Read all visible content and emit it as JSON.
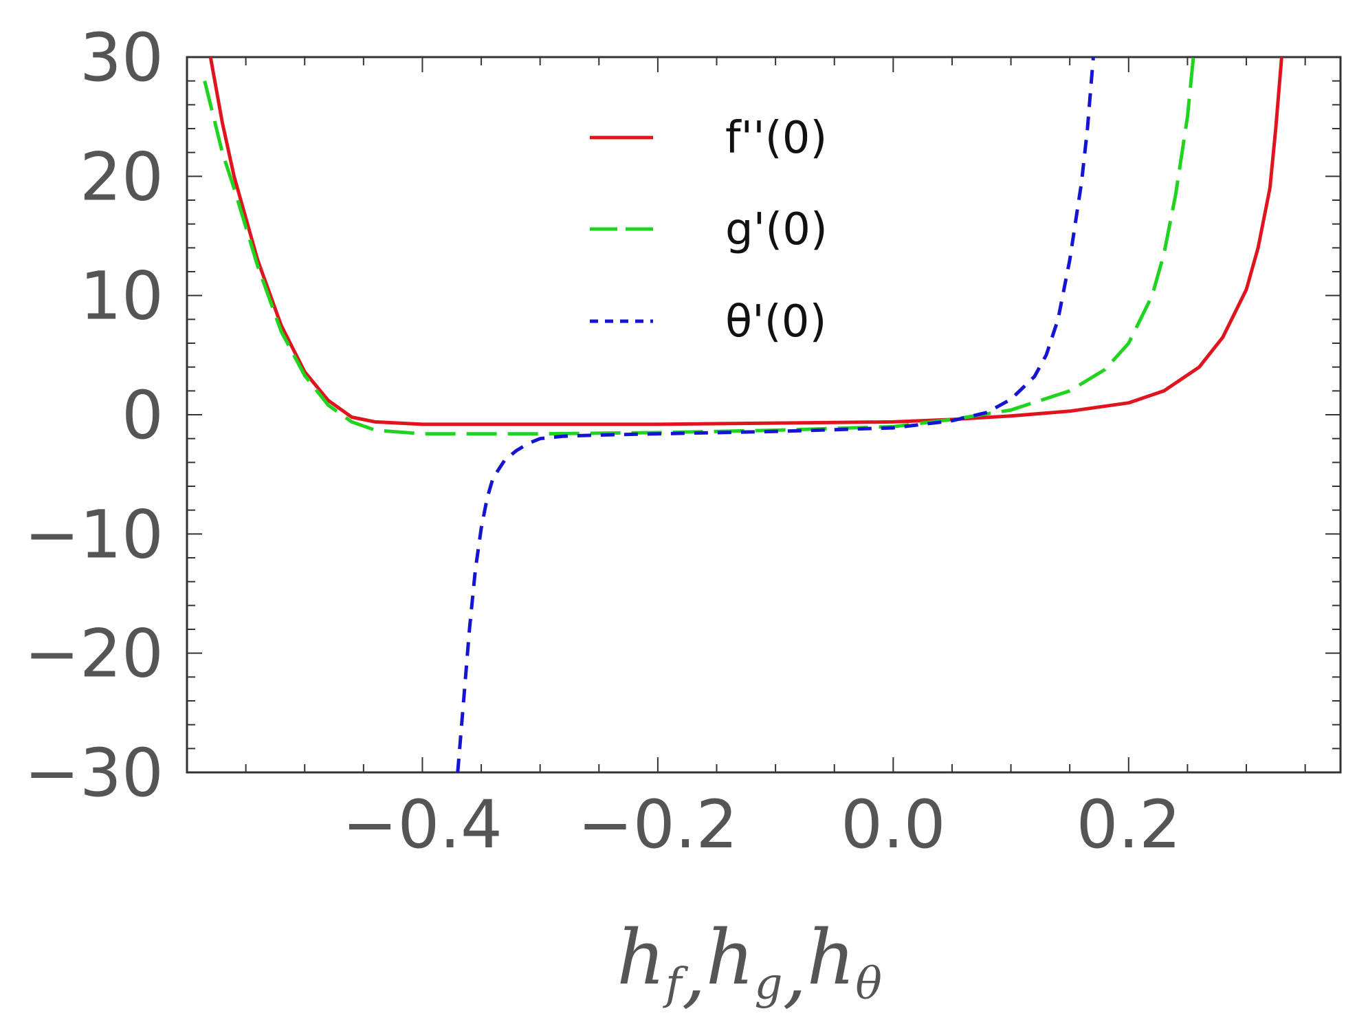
{
  "chart_data": {
    "type": "line",
    "title": "",
    "xlabel": "",
    "ylabel": "",
    "xlim": [
      -0.6,
      0.38
    ],
    "ylim": [
      -30,
      30
    ],
    "x_ticks": [
      {
        "value": -0.4,
        "label": "−0.4"
      },
      {
        "value": -0.2,
        "label": "−0.2"
      },
      {
        "value": 0.0,
        "label": "0.0"
      },
      {
        "value": 0.2,
        "label": "0.2"
      }
    ],
    "y_ticks": [
      {
        "value": 30,
        "label": "30"
      },
      {
        "value": 20,
        "label": "20"
      },
      {
        "value": 10,
        "label": "10"
      },
      {
        "value": 0,
        "label": "0"
      },
      {
        "value": -10,
        "label": "−10"
      },
      {
        "value": -20,
        "label": "−20"
      },
      {
        "value": -30,
        "label": "−30"
      }
    ],
    "x_axis_title": {
      "parts": [
        {
          "base": "h",
          "sub": "f"
        },
        {
          "base": "h",
          "sub": "g"
        },
        {
          "base": "h",
          "sub": "θ"
        }
      ],
      "separator": ","
    },
    "legend_position": "top-center",
    "series": [
      {
        "name": "f''(0)",
        "color": "#e0141e",
        "style": "solid",
        "x": [
          -0.58,
          -0.57,
          -0.56,
          -0.54,
          -0.52,
          -0.5,
          -0.48,
          -0.46,
          -0.44,
          -0.4,
          -0.3,
          -0.2,
          -0.1,
          0.0,
          0.05,
          0.1,
          0.15,
          0.2,
          0.23,
          0.26,
          0.28,
          0.3,
          0.31,
          0.32,
          0.325,
          0.33
        ],
        "y": [
          30,
          24.5,
          20,
          13,
          7.5,
          3.6,
          1.2,
          -0.2,
          -0.6,
          -0.8,
          -0.8,
          -0.8,
          -0.7,
          -0.6,
          -0.4,
          -0.1,
          0.3,
          1.0,
          2.0,
          4.0,
          6.5,
          10.5,
          14,
          19,
          24,
          30
        ]
      },
      {
        "name": "g'(0)",
        "color": "#1ed41e",
        "style": "dashed",
        "x": [
          -0.585,
          -0.57,
          -0.56,
          -0.54,
          -0.52,
          -0.5,
          -0.48,
          -0.46,
          -0.44,
          -0.4,
          -0.3,
          -0.2,
          -0.1,
          0.0,
          0.05,
          0.1,
          0.15,
          0.18,
          0.2,
          0.22,
          0.23,
          0.24,
          0.25,
          0.255
        ],
        "y": [
          28,
          22,
          19,
          12.5,
          7,
          3.3,
          0.8,
          -0.6,
          -1.3,
          -1.6,
          -1.6,
          -1.5,
          -1.3,
          -1.0,
          -0.4,
          0.4,
          2.0,
          3.8,
          6.0,
          10,
          13.5,
          18.5,
          25,
          30
        ]
      },
      {
        "name": "θ'(0)",
        "color": "#1414d2",
        "style": "dotted",
        "x": [
          -0.37,
          -0.365,
          -0.36,
          -0.355,
          -0.35,
          -0.345,
          -0.34,
          -0.33,
          -0.32,
          -0.31,
          -0.3,
          -0.28,
          -0.25,
          -0.2,
          -0.1,
          0.0,
          0.05,
          0.08,
          0.1,
          0.12,
          0.13,
          0.14,
          0.15,
          0.16,
          0.165,
          0.17
        ],
        "y": [
          -30,
          -24,
          -18,
          -13,
          -9.5,
          -7,
          -5.3,
          -3.8,
          -3,
          -2.4,
          -2,
          -1.8,
          -1.7,
          -1.6,
          -1.4,
          -1.1,
          -0.5,
          0.2,
          1.3,
          3.2,
          5.0,
          8.0,
          13,
          19.5,
          24,
          30
        ]
      }
    ]
  }
}
